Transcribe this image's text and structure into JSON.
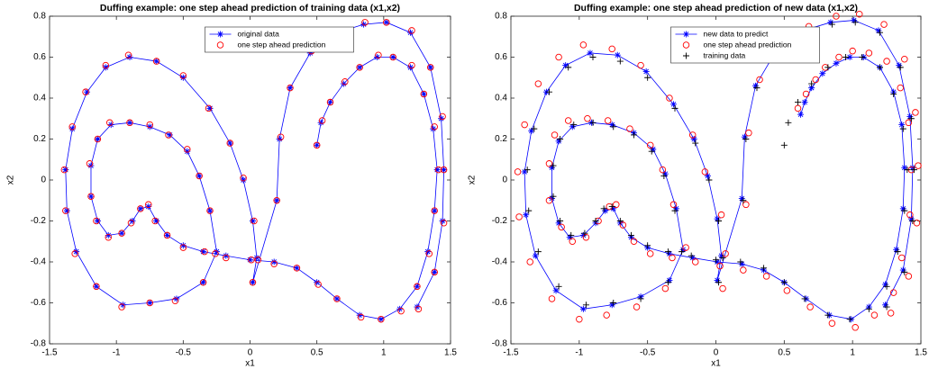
{
  "chart_data": [
    {
      "type": "line",
      "title": "Duffing example: one step ahead prediction of training data (x1,x2)",
      "xlabel": "x1",
      "ylabel": "x2",
      "xlim": [
        -1.5,
        1.5
      ],
      "ylim": [
        -0.8,
        0.8
      ],
      "xticks": [
        -1.5,
        -1,
        -0.5,
        0,
        0.5,
        1,
        1.5
      ],
      "yticks": [
        -0.8,
        -0.6,
        -0.4,
        -0.2,
        0,
        0.2,
        0.4,
        0.6,
        0.8
      ],
      "legend": "top",
      "series": [
        {
          "name": "original data",
          "color": "#0000ff",
          "marker": "star",
          "line": true,
          "x": [
            0.5,
            0.53,
            0.6,
            0.7,
            0.82,
            0.95,
            1.07,
            1.2,
            1.3,
            1.37,
            1.4,
            1.38,
            1.33,
            1.25,
            1.12,
            0.98,
            0.82,
            0.65,
            0.5,
            0.35,
            0.18,
            0,
            -0.18,
            -0.35,
            -0.5,
            -0.62,
            -0.7,
            -0.76,
            -0.82,
            -0.88,
            -0.96,
            -1.06,
            -1.14,
            -1.19,
            -1.19,
            -1.14,
            -1.04,
            -0.9,
            -0.75,
            -0.6,
            -0.47,
            -0.38,
            -0.3,
            -0.25,
            -0.35,
            -0.55,
            -0.75,
            -0.95,
            -1.15,
            -1.3,
            -1.37,
            -1.38,
            -1.33,
            -1.22,
            -1.08,
            -0.9,
            -0.7,
            -0.5,
            -0.3,
            -0.15,
            -0.05,
            0.02,
            0.05,
            0.02,
            0.2,
            0.22,
            0.3,
            0.45,
            0.65,
            0.85,
            1.02,
            1.2,
            1.35,
            1.43,
            1.45,
            1.44,
            1.38,
            1.25
          ],
          "values": [
            0.17,
            0.28,
            0.38,
            0.47,
            0.55,
            0.6,
            0.6,
            0.55,
            0.42,
            0.25,
            0.05,
            -0.15,
            -0.35,
            -0.52,
            -0.63,
            -0.68,
            -0.66,
            -0.58,
            -0.5,
            -0.43,
            -0.4,
            -0.39,
            -0.37,
            -0.35,
            -0.32,
            -0.27,
            -0.2,
            -0.13,
            -0.14,
            -0.2,
            -0.26,
            -0.27,
            -0.2,
            -0.08,
            0.07,
            0.2,
            0.27,
            0.28,
            0.26,
            0.22,
            0.14,
            0.02,
            -0.15,
            -0.35,
            -0.5,
            -0.58,
            -0.6,
            -0.61,
            -0.52,
            -0.35,
            -0.15,
            0.05,
            0.25,
            0.43,
            0.55,
            0.6,
            0.58,
            0.5,
            0.35,
            0.18,
            0,
            -0.2,
            -0.38,
            -0.5,
            -0.1,
            0.2,
            0.45,
            0.62,
            0.72,
            0.76,
            0.77,
            0.72,
            0.55,
            0.3,
            0.05,
            -0.2,
            -0.45,
            -0.62
          ]
        },
        {
          "name": "one step ahead prediction",
          "color": "#ff0000",
          "marker": "circle",
          "line": false,
          "x": [
            0.5,
            0.54,
            0.6,
            0.71,
            0.82,
            0.96,
            1.07,
            1.21,
            1.3,
            1.38,
            1.41,
            1.38,
            1.34,
            1.25,
            1.13,
            0.98,
            0.83,
            0.65,
            0.51,
            0.35,
            0.18,
            0.01,
            -0.18,
            -0.34,
            -0.5,
            -0.62,
            -0.71,
            -0.76,
            -0.82,
            -0.89,
            -0.96,
            -1.06,
            -1.15,
            -1.19,
            -1.2,
            -1.14,
            -1.05,
            -0.9,
            -0.75,
            -0.61,
            -0.47,
            -0.38,
            -0.3,
            -0.26,
            -0.35,
            -0.56,
            -0.75,
            -0.96,
            -1.15,
            -1.31,
            -1.38,
            -1.39,
            -1.33,
            -1.23,
            -1.08,
            -0.91,
            -0.7,
            -0.5,
            -0.31,
            -0.15,
            -0.05,
            0.03,
            0.06,
            0.02,
            0.2,
            0.23,
            0.3,
            0.46,
            0.65,
            0.86,
            1.02,
            1.21,
            1.35,
            1.44,
            1.45,
            1.45,
            1.38,
            1.26
          ],
          "values": [
            0.17,
            0.29,
            0.38,
            0.48,
            0.55,
            0.61,
            0.6,
            0.56,
            0.42,
            0.26,
            0.05,
            -0.15,
            -0.36,
            -0.52,
            -0.64,
            -0.68,
            -0.67,
            -0.58,
            -0.51,
            -0.43,
            -0.41,
            -0.39,
            -0.38,
            -0.35,
            -0.33,
            -0.27,
            -0.2,
            -0.12,
            -0.14,
            -0.21,
            -0.26,
            -0.28,
            -0.2,
            -0.08,
            0.08,
            0.2,
            0.28,
            0.28,
            0.27,
            0.22,
            0.15,
            0.02,
            -0.15,
            -0.36,
            -0.5,
            -0.59,
            -0.6,
            -0.62,
            -0.52,
            -0.36,
            -0.15,
            0.05,
            0.26,
            0.43,
            0.56,
            0.61,
            0.58,
            0.51,
            0.35,
            0.18,
            0.01,
            -0.2,
            -0.39,
            -0.5,
            -0.1,
            0.21,
            0.45,
            0.63,
            0.72,
            0.77,
            0.77,
            0.73,
            0.55,
            0.31,
            0.05,
            -0.21,
            -0.45,
            -0.63
          ]
        }
      ]
    },
    {
      "type": "line",
      "title": "Duffing example: one step ahead prediction of new data (x1,x2)",
      "xlabel": "x1",
      "ylabel": "x2",
      "xlim": [
        -1.5,
        1.5
      ],
      "ylim": [
        -0.8,
        0.8
      ],
      "xticks": [
        -1.5,
        -1,
        -0.5,
        0,
        0.5,
        1,
        1.5
      ],
      "yticks": [
        -0.8,
        -0.6,
        -0.4,
        -0.2,
        0,
        0.2,
        0.4,
        0.6,
        0.8
      ],
      "legend": "top",
      "series": [
        {
          "name": "new data to predict",
          "color": "#0000ff",
          "marker": "star",
          "line": true,
          "x": [
            0.62,
            0.65,
            0.7,
            0.78,
            0.88,
            0.98,
            1.08,
            1.2,
            1.3,
            1.36,
            1.38,
            1.37,
            1.32,
            1.24,
            1.12,
            0.99,
            0.83,
            0.66,
            0.5,
            0.35,
            0.19,
            0.01,
            -0.17,
            -0.34,
            -0.5,
            -0.62,
            -0.7,
            -0.75,
            -0.81,
            -0.88,
            -0.97,
            -1.07,
            -1.15,
            -1.2,
            -1.2,
            -1.15,
            -1.05,
            -0.91,
            -0.76,
            -0.6,
            -0.46,
            -0.37,
            -0.29,
            -0.24,
            -0.34,
            -0.55,
            -0.76,
            -0.97,
            -1.17,
            -1.32,
            -1.39,
            -1.4,
            -1.35,
            -1.24,
            -1.1,
            -0.92,
            -0.72,
            -0.51,
            -0.31,
            -0.16,
            -0.06,
            0.01,
            0.04,
            0.01,
            0.19,
            0.21,
            0.29,
            0.44,
            0.64,
            0.84,
            1.01,
            1.19,
            1.34,
            1.42,
            1.44,
            1.43,
            1.37,
            1.24
          ],
          "values": [
            0.32,
            0.38,
            0.45,
            0.52,
            0.57,
            0.6,
            0.6,
            0.55,
            0.43,
            0.27,
            0.06,
            -0.14,
            -0.34,
            -0.51,
            -0.62,
            -0.68,
            -0.66,
            -0.58,
            -0.5,
            -0.44,
            -0.41,
            -0.4,
            -0.38,
            -0.36,
            -0.33,
            -0.28,
            -0.21,
            -0.14,
            -0.15,
            -0.21,
            -0.27,
            -0.28,
            -0.21,
            -0.09,
            0.06,
            0.19,
            0.26,
            0.28,
            0.27,
            0.23,
            0.15,
            0.03,
            -0.14,
            -0.34,
            -0.49,
            -0.57,
            -0.61,
            -0.63,
            -0.54,
            -0.37,
            -0.17,
            0.04,
            0.24,
            0.43,
            0.56,
            0.62,
            0.61,
            0.53,
            0.37,
            0.2,
            0.02,
            -0.19,
            -0.37,
            -0.49,
            -0.09,
            0.21,
            0.46,
            0.63,
            0.73,
            0.77,
            0.78,
            0.73,
            0.56,
            0.31,
            0.06,
            -0.19,
            -0.44,
            -0.61
          ]
        },
        {
          "name": "one step ahead prediction",
          "color": "#ff0000",
          "marker": "circle",
          "line": false,
          "x": [
            0.6,
            0.66,
            0.73,
            0.8,
            0.9,
            1.0,
            1.12,
            1.25,
            1.35,
            1.41,
            1.43,
            1.42,
            1.36,
            1.3,
            1.16,
            1.02,
            0.85,
            0.69,
            0.52,
            0.37,
            0.2,
            0.03,
            -0.15,
            -0.32,
            -0.48,
            -0.6,
            -0.68,
            -0.73,
            -0.78,
            -0.86,
            -0.95,
            -1.05,
            -1.13,
            -1.22,
            -1.22,
            -1.18,
            -1.08,
            -0.94,
            -0.79,
            -0.63,
            -0.48,
            -0.39,
            -0.31,
            -0.22,
            -0.37,
            -0.58,
            -0.8,
            -1.0,
            -1.2,
            -1.36,
            -1.44,
            -1.45,
            -1.4,
            -1.3,
            -1.15,
            -0.97,
            -0.76,
            -0.55,
            -0.34,
            -0.17,
            -0.08,
            0.04,
            0.07,
            0.05,
            0.22,
            0.24,
            0.32,
            0.48,
            0.68,
            0.88,
            1.05,
            1.23,
            1.38,
            1.46,
            1.48,
            1.47,
            1.41,
            1.28
          ],
          "values": [
            0.35,
            0.42,
            0.49,
            0.55,
            0.6,
            0.63,
            0.62,
            0.58,
            0.45,
            0.28,
            0.05,
            -0.17,
            -0.38,
            -0.55,
            -0.66,
            -0.72,
            -0.7,
            -0.62,
            -0.54,
            -0.47,
            -0.44,
            -0.42,
            -0.4,
            -0.38,
            -0.36,
            -0.3,
            -0.22,
            -0.12,
            -0.13,
            -0.2,
            -0.28,
            -0.3,
            -0.23,
            -0.1,
            0.08,
            0.22,
            0.29,
            0.3,
            0.29,
            0.25,
            0.17,
            0.05,
            -0.12,
            -0.33,
            -0.53,
            -0.62,
            -0.66,
            -0.68,
            -0.58,
            -0.4,
            -0.18,
            0.04,
            0.27,
            0.47,
            0.6,
            0.66,
            0.64,
            0.56,
            0.4,
            0.22,
            0.04,
            -0.17,
            -0.36,
            -0.53,
            -0.12,
            0.23,
            0.49,
            0.66,
            0.75,
            0.8,
            0.81,
            0.76,
            0.59,
            0.33,
            0.07,
            -0.21,
            -0.47,
            -0.65
          ]
        },
        {
          "name": "training data",
          "color": "#000000",
          "marker": "plus",
          "line": false,
          "x": [
            0.5,
            0.53,
            0.6,
            0.7,
            0.82,
            0.95,
            1.07,
            1.2,
            1.3,
            1.37,
            1.4,
            1.38,
            1.33,
            1.25,
            1.12,
            0.98,
            0.82,
            0.65,
            0.5,
            0.35,
            0.18,
            0,
            -0.18,
            -0.35,
            -0.5,
            -0.62,
            -0.7,
            -0.76,
            -0.82,
            -0.88,
            -0.96,
            -1.06,
            -1.14,
            -1.19,
            -1.19,
            -1.14,
            -1.04,
            -0.9,
            -0.75,
            -0.6,
            -0.47,
            -0.38,
            -0.3,
            -0.25,
            -0.35,
            -0.55,
            -0.75,
            -0.95,
            -1.15,
            -1.3,
            -1.37,
            -1.38,
            -1.33,
            -1.22,
            -1.08,
            -0.9,
            -0.7,
            -0.5,
            -0.3,
            -0.15,
            -0.05,
            0.02,
            0.05,
            0.02,
            0.2,
            0.22,
            0.3,
            0.45,
            0.65,
            0.85,
            1.02,
            1.2,
            1.35,
            1.43,
            1.45,
            1.44,
            1.38,
            1.25
          ],
          "values": [
            0.17,
            0.28,
            0.38,
            0.47,
            0.55,
            0.6,
            0.6,
            0.55,
            0.42,
            0.25,
            0.05,
            -0.15,
            -0.35,
            -0.52,
            -0.63,
            -0.68,
            -0.66,
            -0.58,
            -0.5,
            -0.43,
            -0.4,
            -0.39,
            -0.37,
            -0.35,
            -0.32,
            -0.27,
            -0.2,
            -0.13,
            -0.14,
            -0.2,
            -0.26,
            -0.27,
            -0.2,
            -0.08,
            0.07,
            0.2,
            0.27,
            0.28,
            0.26,
            0.22,
            0.14,
            0.02,
            -0.15,
            -0.35,
            -0.5,
            -0.58,
            -0.6,
            -0.61,
            -0.52,
            -0.35,
            -0.15,
            0.05,
            0.25,
            0.43,
            0.55,
            0.6,
            0.58,
            0.5,
            0.35,
            0.18,
            0,
            -0.2,
            -0.38,
            -0.5,
            -0.1,
            0.2,
            0.45,
            0.62,
            0.72,
            0.76,
            0.77,
            0.72,
            0.55,
            0.3,
            0.05,
            -0.2,
            -0.45,
            -0.62
          ]
        }
      ]
    }
  ]
}
